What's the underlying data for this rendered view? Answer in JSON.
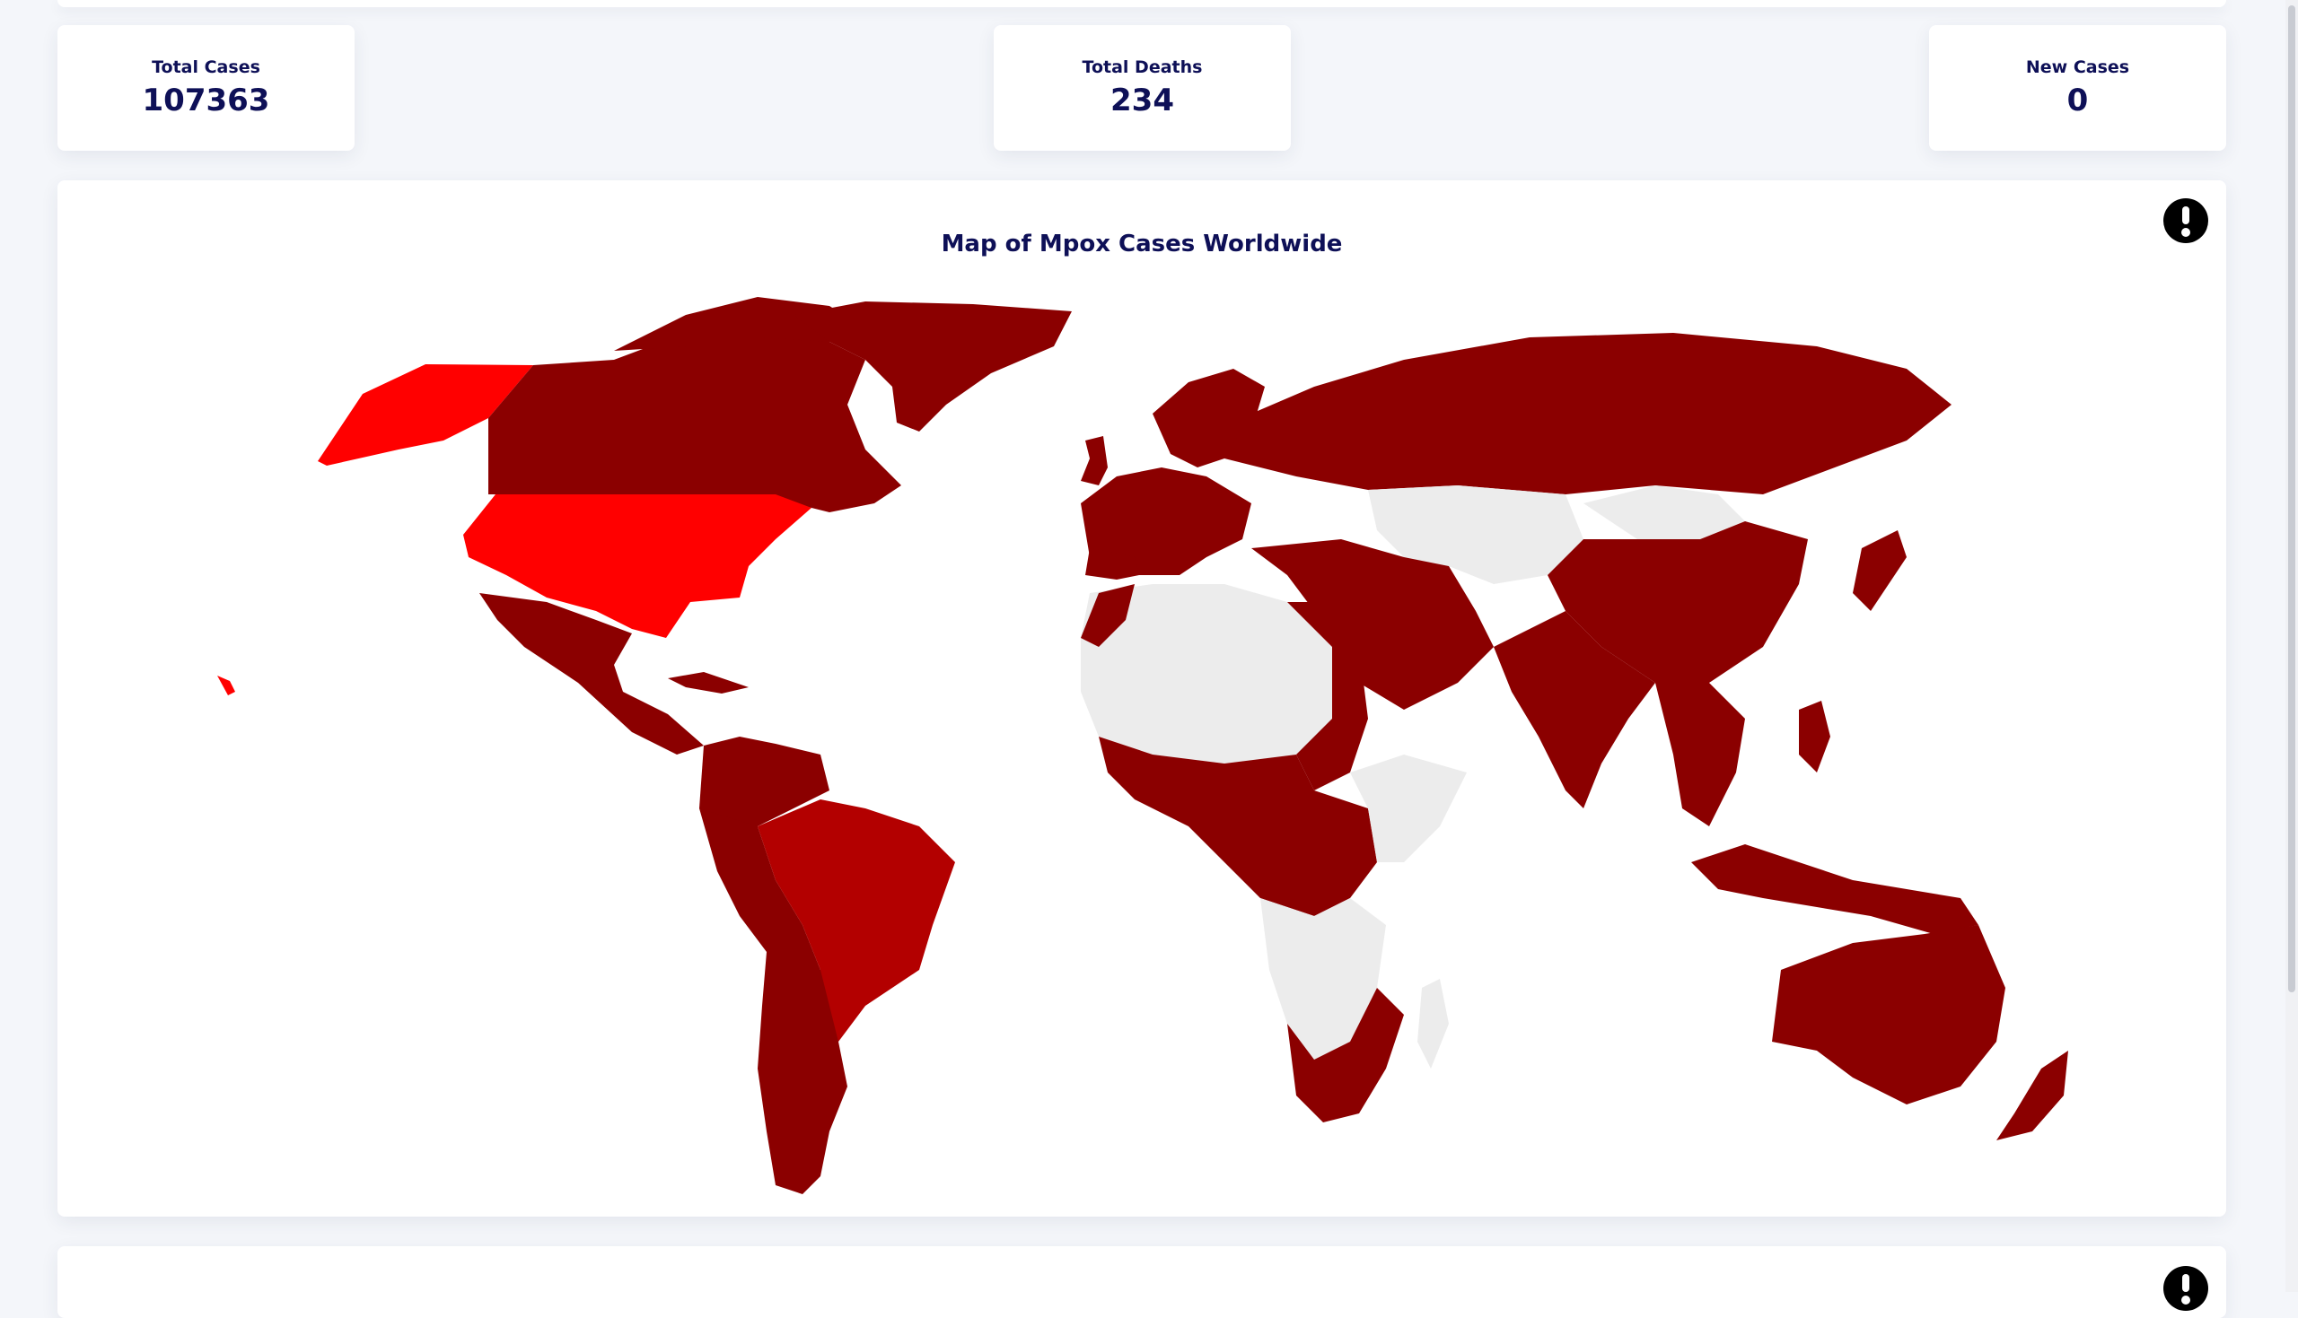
{
  "stats": [
    {
      "label": "Total Cases",
      "value": "107363"
    },
    {
      "label": "Total Deaths",
      "value": "234"
    },
    {
      "label": "New Cases",
      "value": "0"
    }
  ],
  "map_panel": {
    "title": "Map of Mpox Cases Worldwide",
    "info_icon": "exclamation-circle-icon"
  },
  "colors": {
    "no_data": "#ececec",
    "low": "#8b0000",
    "medium": "#b30000",
    "high": "#ff0000",
    "heading": "#0e1057"
  }
}
